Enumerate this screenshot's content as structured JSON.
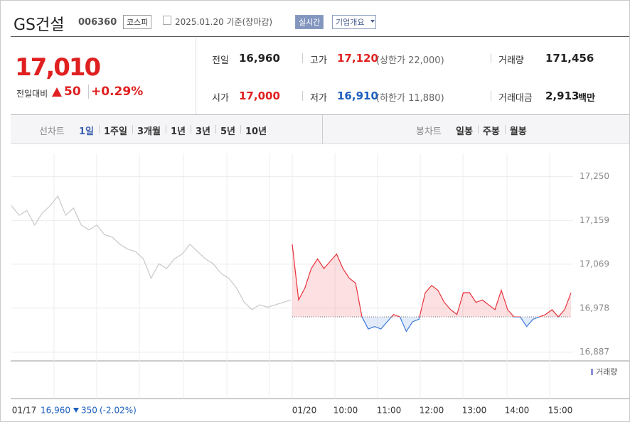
{
  "header": {
    "title": "GS건설",
    "code": "006360",
    "market": "코스피",
    "date": "2025.01.20 기준(장마감)",
    "buttons": [
      "실시간",
      "기업개요"
    ]
  },
  "quote": {
    "price": "17,010",
    "change_label": "전일대비",
    "change": "50",
    "change_pct": "+0.29%"
  },
  "stats": [
    {
      "label": "전일",
      "value": "16,960"
    },
    {
      "label": "고가",
      "value": "17,120",
      "note": "(상한가 22,000)"
    },
    {
      "label": "거래량",
      "value": "171,456"
    },
    {
      "label": "시가",
      "value": "17,000"
    },
    {
      "label": "저가",
      "value": "16,910",
      "note": "(하한가 11,880)"
    },
    {
      "label": "거래대금",
      "value": "2,913",
      "unit": "백만"
    }
  ],
  "tabs": {
    "line_label": "선차트",
    "line": [
      "1일",
      "1주일",
      "3개월",
      "1년",
      "3년",
      "5년",
      "10년"
    ],
    "candle_label": "봉차트",
    "candle": [
      "일봉",
      "주봉",
      "월봉"
    ]
  },
  "chart_data": {
    "type": "line",
    "ylim": [
      16869,
      17298
    ],
    "yticks": [
      {
        "value": 17250,
        "label": "17,250"
      },
      {
        "value": 17159,
        "label": "17,159"
      },
      {
        "value": 17069,
        "label": "17,069"
      },
      {
        "value": 16978,
        "label": "16,978"
      },
      {
        "value": 16887,
        "label": "16,887"
      }
    ],
    "baseline": 16960,
    "xticks": [
      "01/17",
      "01/20",
      "10:00",
      "11:00",
      "12:00",
      "13:00",
      "14:00",
      "15:00"
    ],
    "series": [
      {
        "name": "01/17",
        "color": "#c8c8c8",
        "values": [
          17190,
          17170,
          17180,
          17150,
          17175,
          17190,
          17210,
          17170,
          17185,
          17150,
          17140,
          17150,
          17130,
          17125,
          17110,
          17100,
          17095,
          17080,
          17040,
          17070,
          17060,
          17080,
          17090,
          17110,
          17095,
          17080,
          17070,
          17050,
          17040,
          17020,
          16990,
          16975,
          16985,
          16980,
          16985,
          16990,
          16995
        ]
      },
      {
        "name": "01/20",
        "color": "#e8323c",
        "color_below": "#3c78d8",
        "values": [
          17110,
          16995,
          17020,
          17060,
          17080,
          17060,
          17075,
          17090,
          17060,
          17040,
          17030,
          16960,
          16935,
          16940,
          16935,
          16950,
          16965,
          16960,
          16930,
          16950,
          16955,
          17010,
          17025,
          17015,
          16990,
          16975,
          16965,
          17010,
          17010,
          16990,
          16995,
          16985,
          16975,
          17015,
          16975,
          16960,
          16960,
          16940,
          16955,
          16960,
          16965,
          16975,
          16960,
          16975,
          17010
        ]
      }
    ],
    "volume_label": "거래량",
    "footer": {
      "date": "01/17",
      "close": "16,960",
      "change": "350",
      "change_pct": "(-2.02%)"
    }
  }
}
